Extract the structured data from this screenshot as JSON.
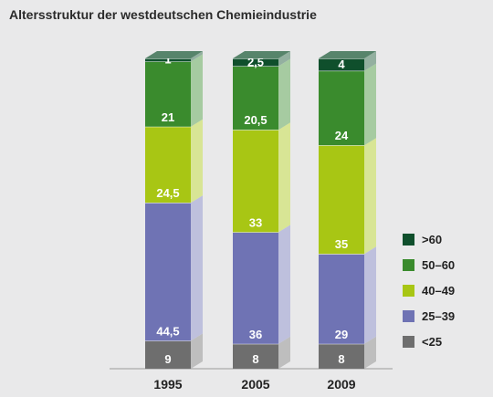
{
  "title": "Altersstruktur der westdeutschen Chemieindustrie",
  "chart_data": {
    "type": "bar",
    "stacked": true,
    "categories": [
      "1995",
      "2005",
      "2009"
    ],
    "series": [
      {
        "name": "<25",
        "color": "#6e6e6e",
        "values": [
          9,
          8,
          8
        ],
        "labels": [
          "9",
          "8",
          "8"
        ]
      },
      {
        "name": "25–39",
        "color": "#6f73b4",
        "values": [
          44.5,
          36,
          29
        ],
        "labels": [
          "44,5",
          "36",
          "29"
        ]
      },
      {
        "name": "40–49",
        "color": "#a8c614",
        "values": [
          24.5,
          33,
          35
        ],
        "labels": [
          "24,5",
          "33",
          "35"
        ]
      },
      {
        "name": "50–60",
        "color": "#3a8b2d",
        "values": [
          21,
          20.5,
          24
        ],
        "labels": [
          "21",
          "20,5",
          "24"
        ]
      },
      {
        "name": ">60",
        "color": "#0f4f2c",
        "values": [
          1,
          2.5,
          4
        ],
        "labels": [
          "1",
          "2,5",
          "4"
        ]
      }
    ],
    "legend": {
      "position": "right",
      "order": [
        ">60",
        "50–60",
        "40–49",
        "25–39",
        "<25"
      ]
    },
    "grid": false,
    "ylim": [
      0,
      100
    ]
  }
}
